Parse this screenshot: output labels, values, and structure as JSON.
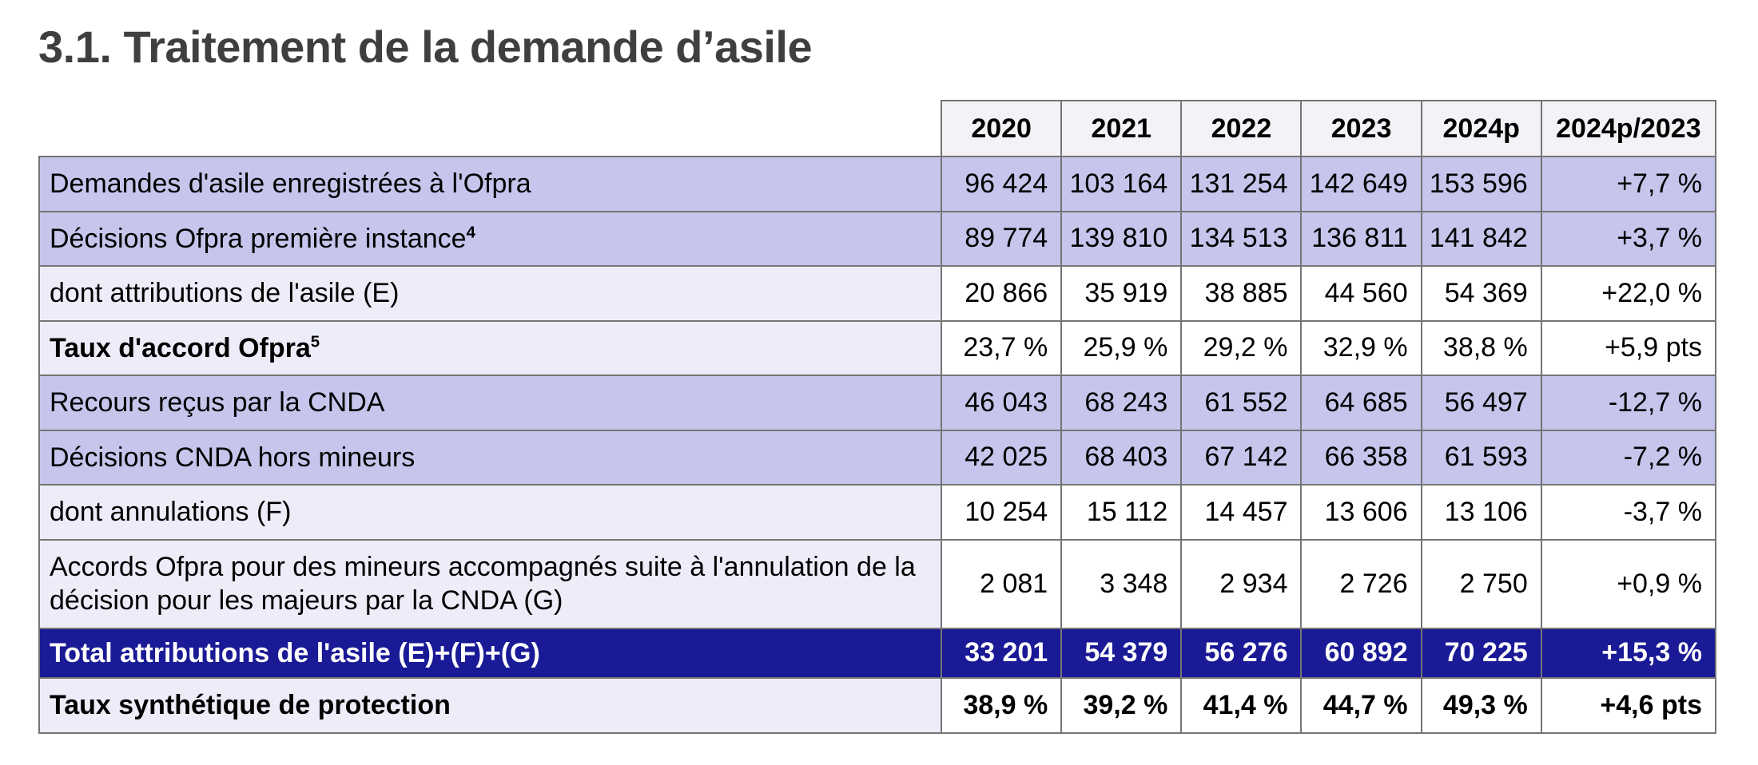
{
  "page_title": "3.1. Traitement de la demande d’asile",
  "colors": {
    "purple_band": "#c6c5ec",
    "light_band": "#ecedf8",
    "navy_band": "#1a1a96",
    "header_bg": "#f2f2f7",
    "border": "#757575",
    "title_color": "#3f3f3f"
  },
  "chart_data": {
    "type": "table",
    "title": "3.1. Traitement de la demande d’asile",
    "columns": [
      "2020",
      "2021",
      "2022",
      "2023",
      "2024p",
      "2024p/2023"
    ],
    "rows": [
      {
        "label": "Demandes d'asile enregistrées à l'Ofpra",
        "sup": "",
        "style": "purple",
        "label_bold": false,
        "values_bold": false,
        "values": [
          "96 424",
          "103 164",
          "131 254",
          "142 649",
          "153 596",
          "+7,7 %"
        ]
      },
      {
        "label": "Décisions Ofpra première instance",
        "sup": "4",
        "style": "purple",
        "label_bold": false,
        "values_bold": false,
        "values": [
          "89 774",
          "139 810",
          "134 513",
          "136 811",
          "141 842",
          "+3,7 %"
        ]
      },
      {
        "label": "dont attributions de l'asile (E)",
        "sup": "",
        "style": "light",
        "label_bold": false,
        "values_bold": false,
        "values": [
          "20 866",
          "35 919",
          "38 885",
          "44 560",
          "54 369",
          "+22,0 %"
        ]
      },
      {
        "label": "Taux d'accord Ofpra",
        "sup": "5",
        "style": "light",
        "label_bold": true,
        "values_bold": false,
        "values": [
          "23,7 %",
          "25,9 %",
          "29,2 %",
          "32,9 %",
          "38,8 %",
          "+5,9 pts"
        ]
      },
      {
        "label": "Recours reçus par la CNDA",
        "sup": "",
        "style": "purple",
        "label_bold": false,
        "values_bold": false,
        "values": [
          "46 043",
          "68 243",
          "61 552",
          "64 685",
          "56 497",
          "-12,7 %"
        ]
      },
      {
        "label": "Décisions CNDA hors mineurs",
        "sup": "",
        "style": "purple",
        "label_bold": false,
        "values_bold": false,
        "values": [
          "42 025",
          "68 403",
          "67 142",
          "66 358",
          "61 593",
          "-7,2 %"
        ]
      },
      {
        "label": "dont annulations (F)",
        "sup": "",
        "style": "light",
        "label_bold": false,
        "values_bold": false,
        "values": [
          "10 254",
          "15 112",
          "14 457",
          "13 606",
          "13 106",
          "-3,7 %"
        ]
      },
      {
        "label": "Accords Ofpra pour des mineurs accompagnés suite à l'annulation de la décision pour les majeurs par la CNDA (G)",
        "sup": "",
        "style": "light",
        "label_bold": false,
        "values_bold": false,
        "values": [
          "2 081",
          "3 348",
          "2 934",
          "2 726",
          "2 750",
          "+0,9 %"
        ]
      },
      {
        "label": "Total attributions de l'asile (E)+(F)+(G)",
        "sup": "",
        "style": "navy",
        "label_bold": true,
        "values_bold": true,
        "values": [
          "33 201",
          "54 379",
          "56 276",
          "60 892",
          "70 225",
          "+15,3 %"
        ]
      },
      {
        "label": "Taux synthétique de protection",
        "sup": "",
        "style": "light",
        "label_bold": true,
        "values_bold": true,
        "values": [
          "38,9 %",
          "39,2 %",
          "41,4 %",
          "44,7 %",
          "49,3 %",
          "+4,6 pts"
        ]
      }
    ]
  }
}
